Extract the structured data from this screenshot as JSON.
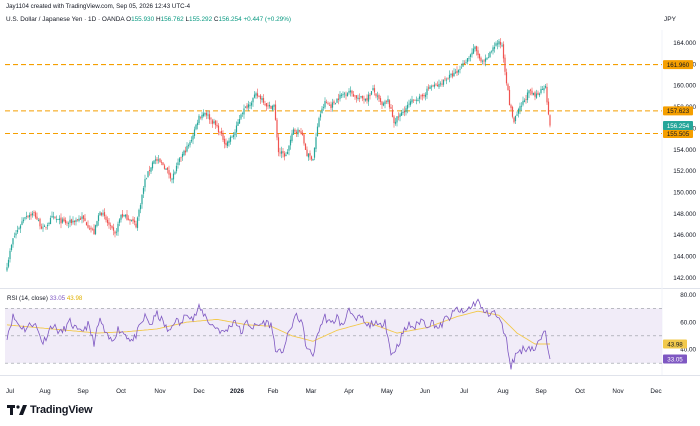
{
  "header": {
    "attribution": "Jay1104 created with TradingView.com, Sep 05, 2026 12:43 UTC-4",
    "symbol": "U.S. Dollar / Japanese Yen · 1D · OANDA",
    "o_label": "O",
    "o_value": "155.930",
    "h_label": "H",
    "h_value": "156.762",
    "l_label": "L",
    "l_value": "155.292",
    "c_label": "C",
    "c_value": "156.254",
    "change": "+0.447 (+0.29%)",
    "currency": "JPY"
  },
  "brand": {
    "name": "TradingView",
    "icon": "tradingview-logo-icon"
  },
  "colors": {
    "up": "#26a69a",
    "down": "#ef5350",
    "hline": "#f59f00",
    "rsi_line": "#7e57c2",
    "rsi_ma": "#f2c94c",
    "rsi_band": "#ede7f6",
    "current_price": "#26a69a"
  },
  "chart_data": [
    {
      "type": "candlestick",
      "title": "U.S. Dollar / Japanese Yen · 1D · OANDA",
      "interval": "1D",
      "ylim": [
        141.5,
        165.2
      ],
      "y_ticks": [
        142,
        144,
        146,
        148,
        150,
        152,
        154,
        156,
        158,
        160,
        162,
        164
      ],
      "y_tick_labels": [
        "142.000",
        "144.000",
        "146.000",
        "148.000",
        "150.000",
        "152.000",
        "154.000",
        "156.000",
        "158.000",
        "160.000",
        "162.000",
        "164.000"
      ],
      "x_tick_labels": [
        "Jul",
        "Aug",
        "Sep",
        "Oct",
        "Nov",
        "Dec",
        "2026",
        "Feb",
        "Mar",
        "Apr",
        "May",
        "Jun",
        "Jul",
        "Aug",
        "Sep",
        "Oct",
        "Nov",
        "Dec"
      ],
      "bold_x_tick": "2026",
      "last_candle_index": 362,
      "anchors": [
        [
          0,
          143.2
        ],
        [
          4,
          145.6
        ],
        [
          12,
          147.8
        ],
        [
          18,
          148.0
        ],
        [
          24,
          146.5
        ],
        [
          30,
          147.6
        ],
        [
          40,
          147.1
        ],
        [
          50,
          147.6
        ],
        [
          58,
          146.2
        ],
        [
          62,
          148.3
        ],
        [
          68,
          146.9
        ],
        [
          72,
          146.0
        ],
        [
          76,
          147.9
        ],
        [
          82,
          147.5
        ],
        [
          86,
          146.9
        ],
        [
          92,
          151.1
        ],
        [
          98,
          153.1
        ],
        [
          104,
          152.6
        ],
        [
          110,
          151.3
        ],
        [
          116,
          153.3
        ],
        [
          122,
          154.6
        ],
        [
          128,
          157.1
        ],
        [
          132,
          157.5
        ],
        [
          136,
          156.8
        ],
        [
          140,
          156.1
        ],
        [
          146,
          154.5
        ],
        [
          152,
          155.6
        ],
        [
          156,
          157.4
        ],
        [
          162,
          158.4
        ],
        [
          166,
          159.1
        ],
        [
          170,
          158.8
        ],
        [
          174,
          158.0
        ],
        [
          178,
          158.1
        ],
        [
          181,
          153.8
        ],
        [
          186,
          153.4
        ],
        [
          191,
          155.8
        ],
        [
          196,
          155.7
        ],
        [
          200,
          153.5
        ],
        [
          204,
          153.2
        ],
        [
          208,
          157.0
        ],
        [
          212,
          158.4
        ],
        [
          216,
          158.1
        ],
        [
          222,
          159.0
        ],
        [
          228,
          159.5
        ],
        [
          234,
          158.8
        ],
        [
          240,
          158.8
        ],
        [
          244,
          159.6
        ],
        [
          250,
          158.1
        ],
        [
          254,
          158.6
        ],
        [
          258,
          156.6
        ],
        [
          262,
          157.2
        ],
        [
          268,
          158.2
        ],
        [
          272,
          158.8
        ],
        [
          276,
          158.8
        ],
        [
          282,
          159.9
        ],
        [
          288,
          160.0
        ],
        [
          292,
          160.6
        ],
        [
          296,
          160.9
        ],
        [
          300,
          161.2
        ],
        [
          304,
          162.0
        ],
        [
          308,
          162.7
        ],
        [
          312,
          163.5
        ],
        [
          314,
          162.9
        ],
        [
          316,
          162.1
        ],
        [
          320,
          162.4
        ],
        [
          324,
          163.6
        ],
        [
          327,
          164.0
        ],
        [
          330,
          163.8
        ],
        [
          332,
          161.5
        ],
        [
          335,
          158.3
        ],
        [
          338,
          156.6
        ],
        [
          341,
          157.6
        ],
        [
          344,
          158.4
        ],
        [
          348,
          159.4
        ],
        [
          352,
          159.0
        ],
        [
          356,
          159.6
        ],
        [
          359,
          160.1
        ],
        [
          361,
          157.1
        ],
        [
          362,
          156.25
        ]
      ],
      "horizontal_levels": [
        {
          "value": 161.96,
          "label": "161.960",
          "style": "dashed"
        },
        {
          "value": 157.623,
          "label": "157.623",
          "style": "dashed"
        },
        {
          "value": 155.505,
          "label": "155.505",
          "style": "dashed"
        }
      ],
      "current_price": {
        "value": 156.254,
        "label": "156.254"
      }
    },
    {
      "type": "line",
      "title": "RSI (14, close)",
      "legend_label": "RSI (14, close)",
      "rsi_value": "33.05",
      "ma_value": "43.98",
      "ylim": [
        25,
        82
      ],
      "y_ticks": [
        40,
        60,
        80
      ],
      "y_tick_labels": [
        "40.00",
        "60.00",
        "80.00"
      ],
      "band": [
        30,
        70
      ],
      "anchors_rsi": [
        [
          0,
          50
        ],
        [
          4,
          64
        ],
        [
          8,
          58
        ],
        [
          12,
          55
        ],
        [
          18,
          60
        ],
        [
          24,
          45
        ],
        [
          30,
          58
        ],
        [
          36,
          52
        ],
        [
          42,
          60
        ],
        [
          48,
          52
        ],
        [
          54,
          58
        ],
        [
          58,
          45
        ],
        [
          62,
          62
        ],
        [
          66,
          50
        ],
        [
          70,
          46
        ],
        [
          74,
          55
        ],
        [
          78,
          52
        ],
        [
          84,
          46
        ],
        [
          88,
          55
        ],
        [
          92,
          64
        ],
        [
          96,
          58
        ],
        [
          100,
          66
        ],
        [
          104,
          60
        ],
        [
          108,
          52
        ],
        [
          112,
          62
        ],
        [
          116,
          58
        ],
        [
          120,
          68
        ],
        [
          124,
          62
        ],
        [
          128,
          70
        ],
        [
          132,
          65
        ],
        [
          136,
          58
        ],
        [
          140,
          56
        ],
        [
          144,
          52
        ],
        [
          148,
          56
        ],
        [
          152,
          62
        ],
        [
          156,
          52
        ],
        [
          160,
          60
        ],
        [
          164,
          56
        ],
        [
          168,
          58
        ],
        [
          172,
          60
        ],
        [
          176,
          58
        ],
        [
          180,
          36
        ],
        [
          184,
          40
        ],
        [
          188,
          52
        ],
        [
          192,
          64
        ],
        [
          196,
          62
        ],
        [
          200,
          40
        ],
        [
          204,
          36
        ],
        [
          208,
          55
        ],
        [
          212,
          64
        ],
        [
          216,
          58
        ],
        [
          220,
          64
        ],
        [
          224,
          56
        ],
        [
          228,
          72
        ],
        [
          232,
          60
        ],
        [
          236,
          64
        ],
        [
          240,
          56
        ],
        [
          244,
          60
        ],
        [
          248,
          56
        ],
        [
          252,
          62
        ],
        [
          256,
          36
        ],
        [
          260,
          42
        ],
        [
          264,
          52
        ],
        [
          268,
          58
        ],
        [
          272,
          56
        ],
        [
          276,
          62
        ],
        [
          280,
          58
        ],
        [
          284,
          60
        ],
        [
          288,
          55
        ],
        [
          292,
          62
        ],
        [
          296,
          64
        ],
        [
          300,
          70
        ],
        [
          304,
          66
        ],
        [
          308,
          70
        ],
        [
          312,
          74
        ],
        [
          314,
          76
        ],
        [
          316,
          70
        ],
        [
          320,
          66
        ],
        [
          324,
          68
        ],
        [
          328,
          62
        ],
        [
          332,
          52
        ],
        [
          336,
          28
        ],
        [
          340,
          38
        ],
        [
          344,
          40
        ],
        [
          348,
          42
        ],
        [
          352,
          40
        ],
        [
          356,
          48
        ],
        [
          359,
          52
        ],
        [
          361,
          40
        ],
        [
          362,
          33.05
        ]
      ],
      "anchors_ma": [
        [
          0,
          58
        ],
        [
          20,
          56
        ],
        [
          40,
          54
        ],
        [
          60,
          52
        ],
        [
          80,
          53
        ],
        [
          100,
          55
        ],
        [
          120,
          60
        ],
        [
          140,
          62
        ],
        [
          160,
          58
        ],
        [
          176,
          57
        ],
        [
          190,
          50
        ],
        [
          204,
          46
        ],
        [
          220,
          54
        ],
        [
          240,
          60
        ],
        [
          260,
          52
        ],
        [
          280,
          56
        ],
        [
          300,
          64
        ],
        [
          314,
          68
        ],
        [
          328,
          65
        ],
        [
          340,
          52
        ],
        [
          352,
          44
        ],
        [
          362,
          43.98
        ]
      ]
    }
  ]
}
